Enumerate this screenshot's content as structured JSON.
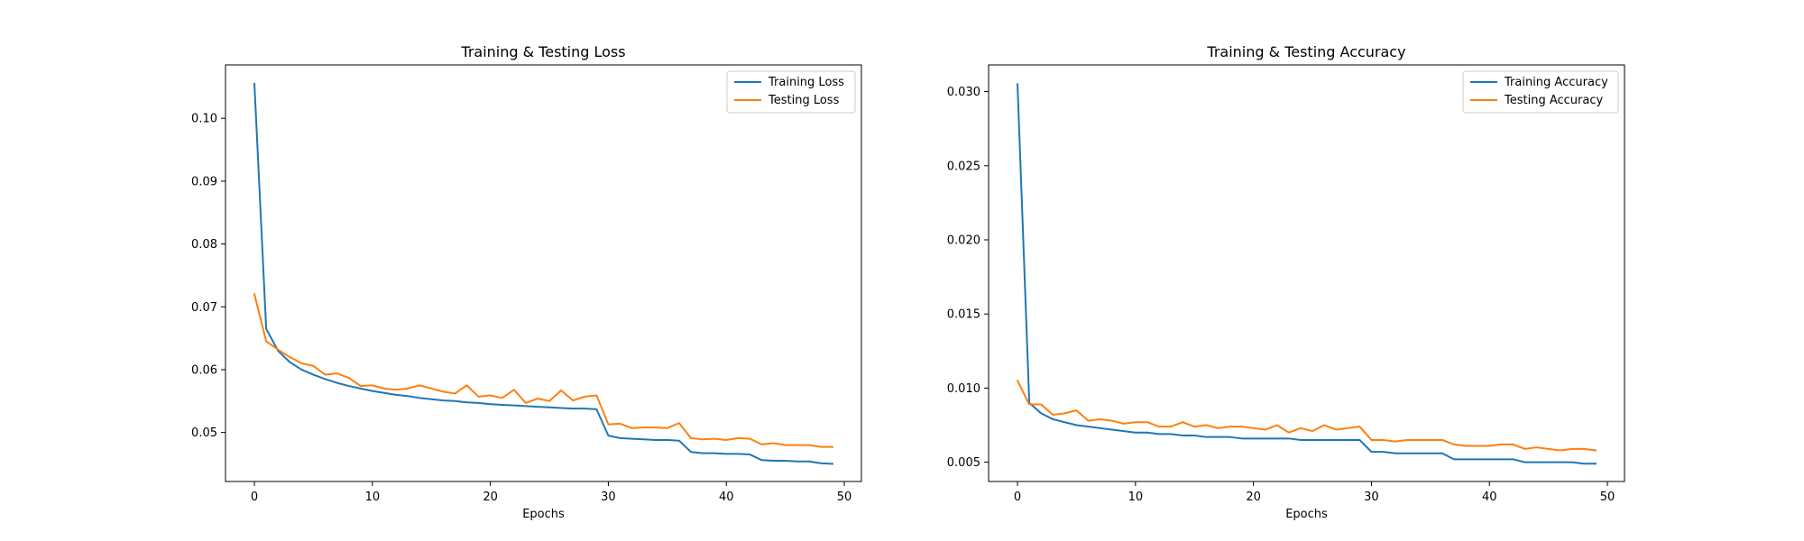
{
  "chart_data": [
    {
      "type": "line",
      "title": "Training & Testing Loss",
      "xlabel": "Epochs",
      "ylabel": "",
      "xlim": [
        -2.45,
        51.45
      ],
      "ylim": [
        0.0422,
        0.1085
      ],
      "xticks": [
        0,
        10,
        20,
        30,
        40,
        50
      ],
      "yticks": [
        0.05,
        0.06,
        0.07,
        0.08,
        0.09,
        0.1
      ],
      "ytick_labels": [
        "0.05",
        "0.06",
        "0.07",
        "0.08",
        "0.09",
        "0.10"
      ],
      "legend": "top-right",
      "grid": false,
      "x": [
        0,
        1,
        2,
        3,
        4,
        5,
        6,
        7,
        8,
        9,
        10,
        11,
        12,
        13,
        14,
        15,
        16,
        17,
        18,
        19,
        20,
        21,
        22,
        23,
        24,
        25,
        26,
        27,
        28,
        29,
        30,
        31,
        32,
        33,
        34,
        35,
        36,
        37,
        38,
        39,
        40,
        41,
        42,
        43,
        44,
        45,
        46,
        47,
        48,
        49
      ],
      "series": [
        {
          "name": "Training Loss",
          "color": "#1f77b4",
          "values": [
            0.1055,
            0.0665,
            0.063,
            0.0612,
            0.06,
            0.0592,
            0.0585,
            0.0579,
            0.0574,
            0.057,
            0.0566,
            0.0563,
            0.056,
            0.0558,
            0.0555,
            0.0553,
            0.0551,
            0.055,
            0.0548,
            0.0547,
            0.0545,
            0.0544,
            0.0543,
            0.0542,
            0.0541,
            0.054,
            0.0539,
            0.0538,
            0.0538,
            0.0537,
            0.0495,
            0.0491,
            0.049,
            0.0489,
            0.0488,
            0.0488,
            0.0487,
            0.0469,
            0.0467,
            0.0467,
            0.0466,
            0.0466,
            0.0465,
            0.0456,
            0.0455,
            0.0455,
            0.0454,
            0.0454,
            0.0451,
            0.045
          ]
        },
        {
          "name": "Testing Loss",
          "color": "#ff7f0e",
          "values": [
            0.072,
            0.0645,
            0.0632,
            0.062,
            0.061,
            0.0606,
            0.0592,
            0.0594,
            0.0587,
            0.0574,
            0.0575,
            0.057,
            0.0568,
            0.057,
            0.0575,
            0.057,
            0.0565,
            0.0562,
            0.0575,
            0.0557,
            0.0559,
            0.0555,
            0.0568,
            0.0547,
            0.0554,
            0.055,
            0.0567,
            0.0551,
            0.0557,
            0.0559,
            0.0513,
            0.0514,
            0.0507,
            0.0508,
            0.0508,
            0.0507,
            0.0515,
            0.0491,
            0.0489,
            0.049,
            0.0488,
            0.0491,
            0.049,
            0.0481,
            0.0483,
            0.048,
            0.048,
            0.048,
            0.0477,
            0.0477
          ]
        }
      ]
    },
    {
      "type": "line",
      "title": "Training & Testing Accuracy",
      "xlabel": "Epochs",
      "ylabel": "",
      "xlim": [
        -2.45,
        51.45
      ],
      "ylim": [
        0.0037,
        0.0318
      ],
      "xticks": [
        0,
        10,
        20,
        30,
        40,
        50
      ],
      "yticks": [
        0.005,
        0.01,
        0.015,
        0.02,
        0.025,
        0.03
      ],
      "ytick_labels": [
        "0.005",
        "0.010",
        "0.015",
        "0.020",
        "0.025",
        "0.030"
      ],
      "legend": "top-right",
      "grid": false,
      "x": [
        0,
        1,
        2,
        3,
        4,
        5,
        6,
        7,
        8,
        9,
        10,
        11,
        12,
        13,
        14,
        15,
        16,
        17,
        18,
        19,
        20,
        21,
        22,
        23,
        24,
        25,
        26,
        27,
        28,
        29,
        30,
        31,
        32,
        33,
        34,
        35,
        36,
        37,
        38,
        39,
        40,
        41,
        42,
        43,
        44,
        45,
        46,
        47,
        48,
        49
      ],
      "series": [
        {
          "name": "Training Accuracy",
          "color": "#1f77b4",
          "values": [
            0.0305,
            0.009,
            0.0083,
            0.0079,
            0.0077,
            0.0075,
            0.0074,
            0.0073,
            0.0072,
            0.0071,
            0.007,
            0.007,
            0.0069,
            0.0069,
            0.0068,
            0.0068,
            0.0067,
            0.0067,
            0.0067,
            0.0066,
            0.0066,
            0.0066,
            0.0066,
            0.0066,
            0.0065,
            0.0065,
            0.0065,
            0.0065,
            0.0065,
            0.0065,
            0.0057,
            0.0057,
            0.0056,
            0.0056,
            0.0056,
            0.0056,
            0.0056,
            0.0052,
            0.0052,
            0.0052,
            0.0052,
            0.0052,
            0.0052,
            0.005,
            0.005,
            0.005,
            0.005,
            0.005,
            0.0049,
            0.0049
          ]
        },
        {
          "name": "Testing Accuracy",
          "color": "#ff7f0e",
          "values": [
            0.0105,
            0.0089,
            0.0089,
            0.0082,
            0.0083,
            0.0085,
            0.0078,
            0.0079,
            0.0078,
            0.0076,
            0.0077,
            0.0077,
            0.0074,
            0.0074,
            0.0077,
            0.0074,
            0.0075,
            0.0073,
            0.0074,
            0.0074,
            0.0073,
            0.0072,
            0.0075,
            0.007,
            0.0073,
            0.0071,
            0.0075,
            0.0072,
            0.0073,
            0.0074,
            0.0065,
            0.0065,
            0.0064,
            0.0065,
            0.0065,
            0.0065,
            0.0065,
            0.0062,
            0.0061,
            0.0061,
            0.0061,
            0.0062,
            0.0062,
            0.0059,
            0.006,
            0.0059,
            0.0058,
            0.0059,
            0.0059,
            0.0058
          ]
        }
      ]
    }
  ]
}
